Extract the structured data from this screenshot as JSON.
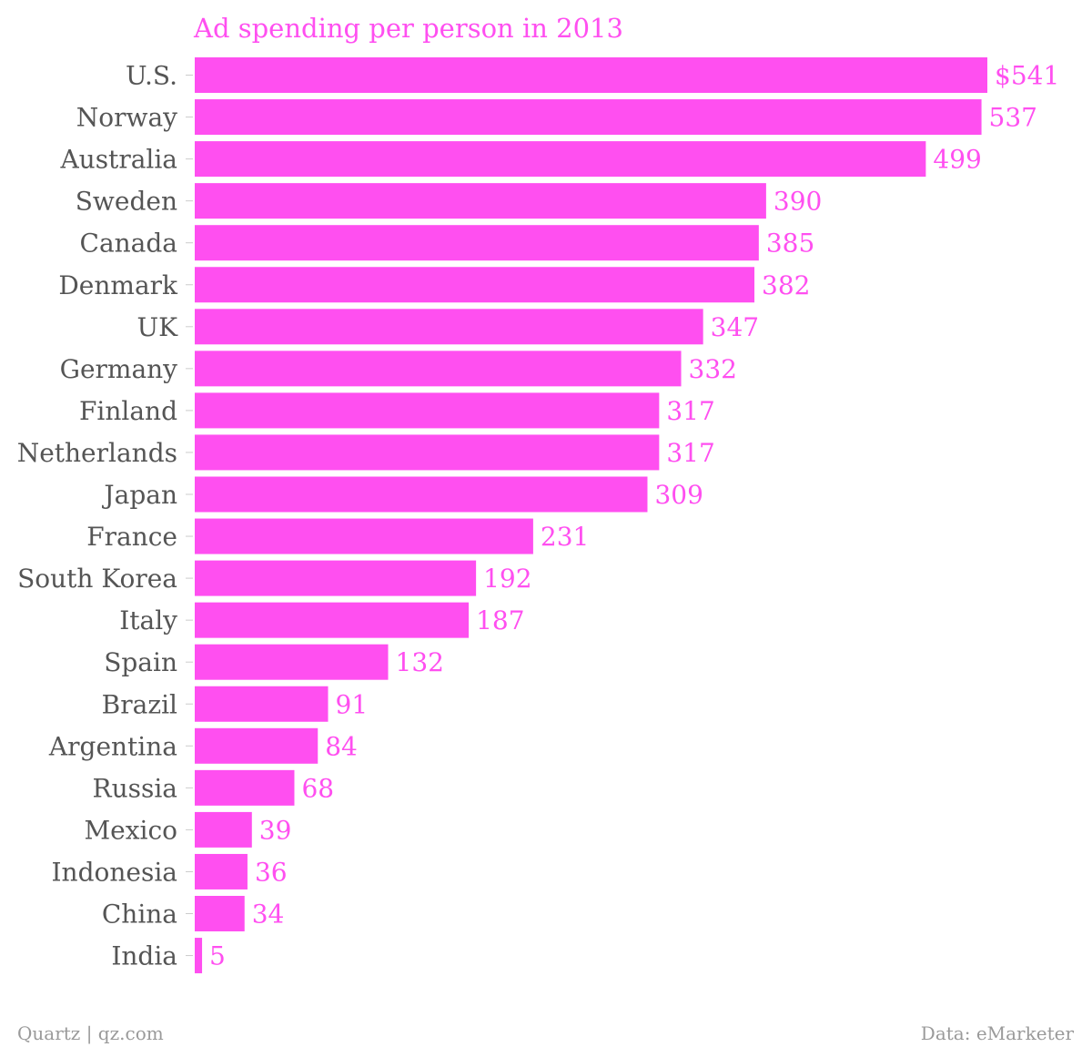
{
  "chart_data": {
    "type": "bar",
    "orientation": "horizontal",
    "title": "Ad spending per person in 2013",
    "categories": [
      "U.S.",
      "Norway",
      "Australia",
      "Sweden",
      "Canada",
      "Denmark",
      "UK",
      "Germany",
      "Finland",
      "Netherlands",
      "Japan",
      "France",
      "South Korea",
      "Italy",
      "Spain",
      "Brazil",
      "Argentina",
      "Russia",
      "Mexico",
      "Indonesia",
      "China",
      "India"
    ],
    "values": [
      541,
      537,
      499,
      390,
      385,
      382,
      347,
      332,
      317,
      317,
      309,
      231,
      192,
      187,
      132,
      91,
      84,
      68,
      39,
      36,
      34,
      5
    ],
    "value_labels": [
      "$541",
      "537",
      "499",
      "390",
      "385",
      "382",
      "347",
      "332",
      "317",
      "317",
      "309",
      "231",
      "192",
      "187",
      "132",
      "91",
      "84",
      "68",
      "39",
      "36",
      "34",
      "5"
    ],
    "xlim": [
      0,
      541
    ],
    "xlabel": "",
    "ylabel": "",
    "grid": false,
    "legend": "none",
    "bar_color": "#ff4ff0",
    "value_label_color": "#ff4ff0",
    "category_label_color": "#555555"
  },
  "footer": {
    "source_left": "Quartz | qz.com",
    "source_right": "Data: eMarketer"
  }
}
